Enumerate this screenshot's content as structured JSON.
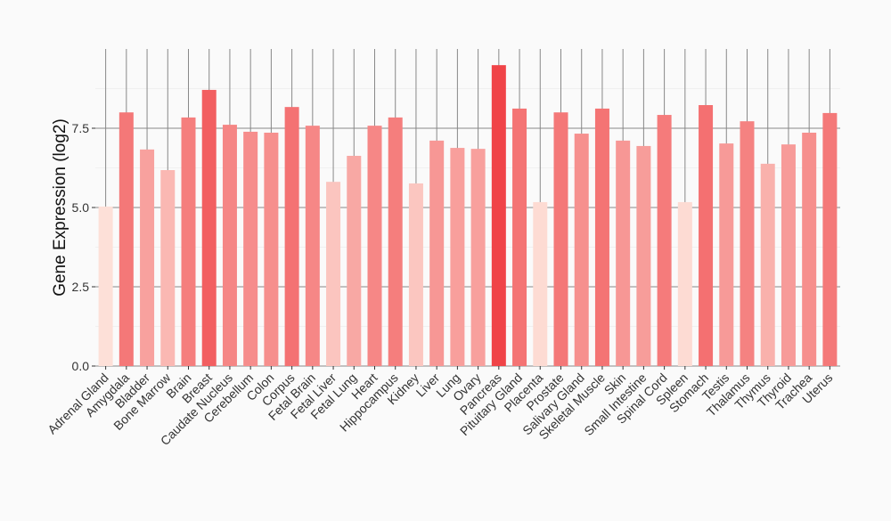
{
  "chart_data": {
    "type": "bar",
    "title": "",
    "xlabel": "",
    "ylabel": "Gene Expression (log2)",
    "ylim": [
      0,
      10
    ],
    "yticks": [
      "0.0",
      "2.5",
      "5.0",
      "7.5"
    ],
    "ytick_values": [
      0,
      2.5,
      5.0,
      7.5
    ],
    "grid": true,
    "legend": "none",
    "color_low": "#fde0d8",
    "color_high": "#f04448",
    "categories": [
      "Adrenal Gland",
      "Amygdala",
      "Bladder",
      "Bone Marrow",
      "Brain",
      "Breast",
      "Caudate Nucleus",
      "Cerebellum",
      "Colon",
      "Corpus",
      "Fetal Brain",
      "Fetal Liver",
      "Fetal Lung",
      "Heart",
      "Hippocampus",
      "Kidney",
      "Liver",
      "Lung",
      "Ovary",
      "Pancreas",
      "Pituitary Gland",
      "Placenta",
      "Prostate",
      "Salivary Gland",
      "Skeletal Muscle",
      "Skin",
      "Small Intestine",
      "Spinal Cord",
      "Spleen",
      "Stomach",
      "Testis",
      "Thalamus",
      "Thymus",
      "Thyroid",
      "Trachea",
      "Uterus"
    ],
    "values": [
      5.03,
      8.0,
      6.83,
      6.18,
      7.84,
      8.71,
      7.61,
      7.39,
      7.36,
      8.17,
      7.58,
      5.81,
      6.63,
      7.58,
      7.84,
      5.76,
      7.11,
      6.88,
      6.85,
      9.49,
      8.12,
      5.17,
      8.0,
      7.33,
      8.12,
      7.11,
      6.94,
      7.92,
      5.17,
      8.23,
      7.02,
      7.72,
      6.38,
      6.99,
      7.36,
      7.98
    ]
  }
}
